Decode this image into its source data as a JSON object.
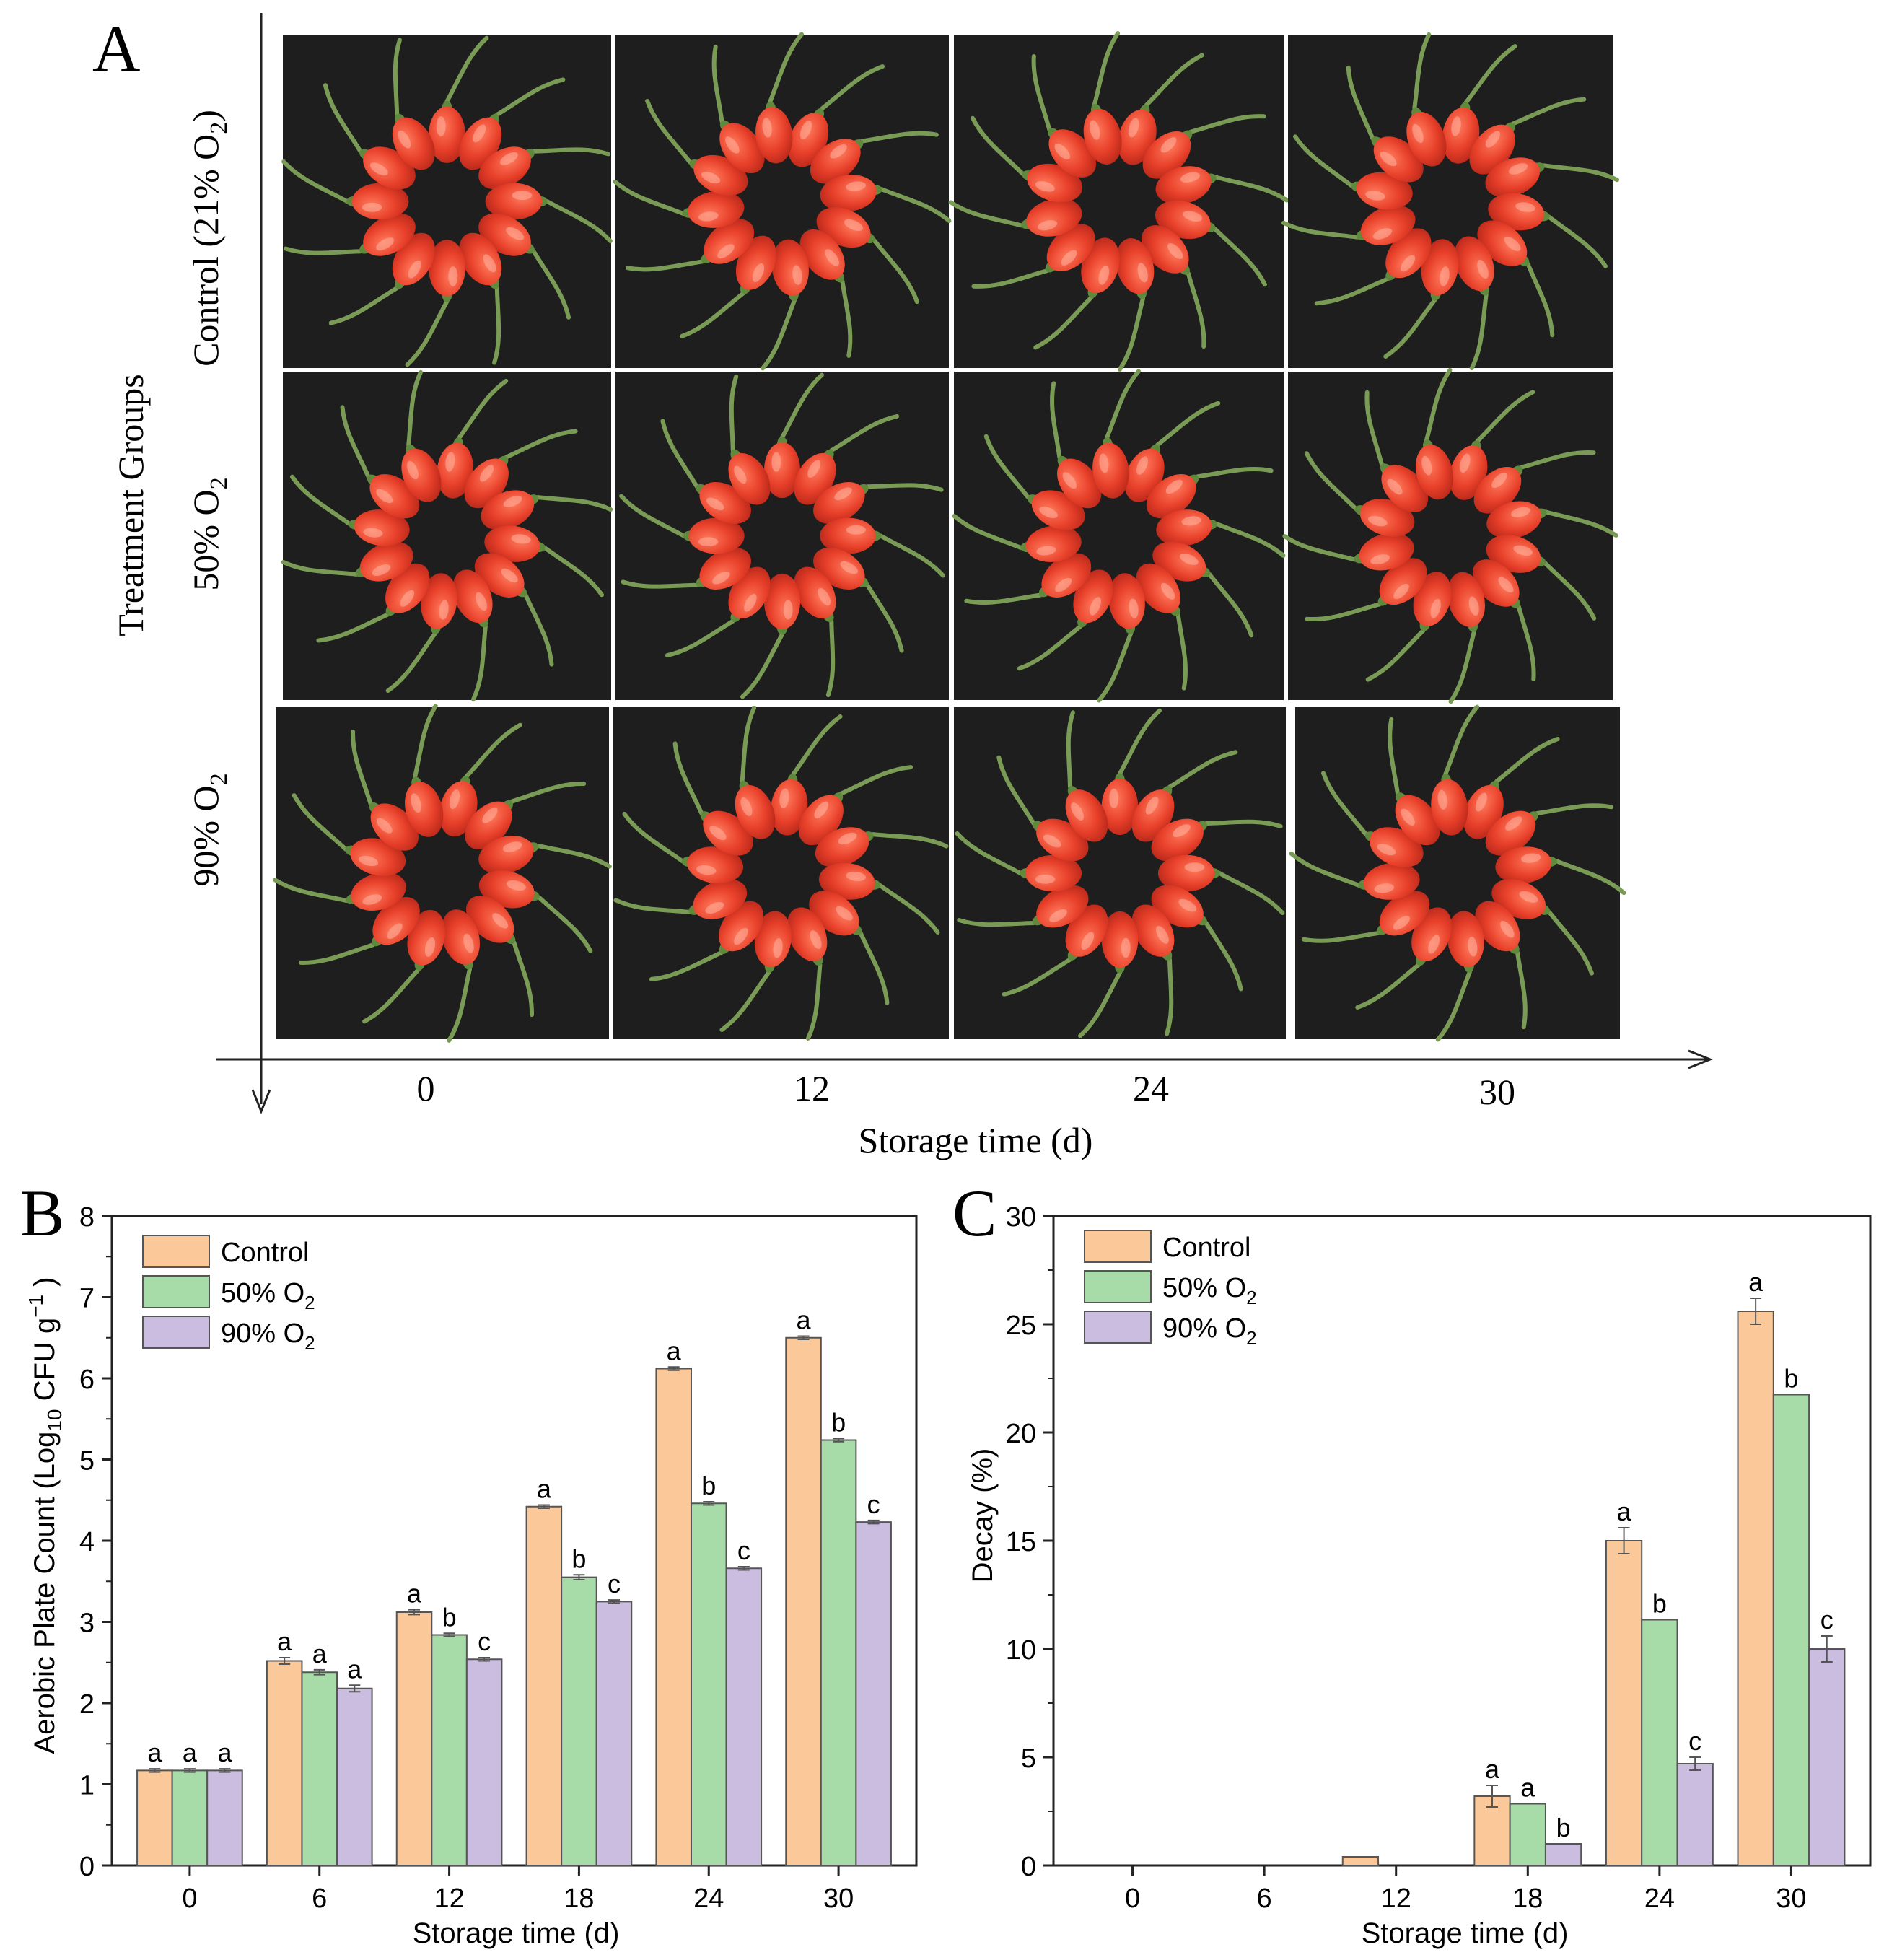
{
  "panel_a": {
    "label": "A",
    "y_axis_title": "Treatment  Groups",
    "x_axis_title": "Storage  time (d)",
    "rows": [
      {
        "label_main": "Control (21% O",
        "label_sub": "2",
        "label_end": ")"
      },
      {
        "label_main": "50% O",
        "label_sub": "2",
        "label_end": ""
      },
      {
        "label_main": "90% O",
        "label_sub": "2",
        "label_end": ""
      }
    ],
    "columns": [
      "0",
      "12",
      "24",
      "30"
    ],
    "photo_description": "goji berries arranged in a ring on black background",
    "berry_count": 12,
    "background_color": "#1e1e1e",
    "berry_color": "#e8402a",
    "stem_color": "#7a9b55"
  },
  "chart_data": [
    {
      "panel": "B",
      "type": "bar",
      "categories": [
        "0",
        "6",
        "12",
        "18",
        "24",
        "30"
      ],
      "series": [
        {
          "name": "Control",
          "color": "#fbc89a",
          "values": [
            1.17,
            2.52,
            3.12,
            4.42,
            6.12,
            6.5
          ],
          "errors": [
            0.02,
            0.04,
            0.03,
            0.02,
            0.02,
            0.02
          ],
          "letters": [
            "a",
            "a",
            "a",
            "a",
            "a",
            "a"
          ]
        },
        {
          "name": "50% O2",
          "color": "#a7dca9",
          "values": [
            1.17,
            2.38,
            2.84,
            3.55,
            4.46,
            5.24
          ],
          "errors": [
            0.02,
            0.03,
            0.02,
            0.03,
            0.02,
            0.02
          ],
          "letters": [
            "a",
            "a",
            "b",
            "b",
            "b",
            "b"
          ]
        },
        {
          "name": "90% O2",
          "color": "#cbbde0",
          "values": [
            1.17,
            2.18,
            2.54,
            3.25,
            3.66,
            4.23
          ],
          "errors": [
            0.02,
            0.04,
            0.02,
            0.02,
            0.02,
            0.02
          ],
          "letters": [
            "a",
            "a",
            "c",
            "c",
            "c",
            "c"
          ]
        }
      ],
      "xlabel": "Storage time (d)",
      "ylabel_main": "Aerobic Plate Count (Log",
      "ylabel_sub": "10",
      "ylabel_mid": " CFU g",
      "ylabel_sup": "−1",
      "ylabel_end": " )",
      "ylim": [
        0,
        8
      ],
      "yticks": [
        "0",
        "1",
        "2",
        "3",
        "4",
        "5",
        "6",
        "7",
        "8"
      ],
      "legend": [
        {
          "main": "Control",
          "sub": ""
        },
        {
          "main": "50% O",
          "sub": "2"
        },
        {
          "main": "90% O",
          "sub": "2"
        }
      ]
    },
    {
      "panel": "C",
      "type": "bar",
      "categories": [
        "0",
        "6",
        "12",
        "18",
        "24",
        "30"
      ],
      "series": [
        {
          "name": "Control",
          "color": "#fbc89a",
          "values": [
            0,
            0,
            0.4,
            3.2,
            15.0,
            25.6
          ],
          "errors": [
            0,
            0,
            0,
            0.5,
            0.6,
            0.6
          ],
          "letters": [
            "",
            "",
            "",
            "a",
            "a",
            "a"
          ]
        },
        {
          "name": "50% O2",
          "color": "#a7dca9",
          "values": [
            0,
            0,
            0,
            2.85,
            11.35,
            21.75
          ],
          "errors": [
            0,
            0,
            0,
            0,
            0,
            0
          ],
          "letters": [
            "",
            "",
            "",
            "a",
            "b",
            "b"
          ]
        },
        {
          "name": "90% O2",
          "color": "#cbbde0",
          "values": [
            0,
            0,
            0,
            1.0,
            4.7,
            10.0
          ],
          "errors": [
            0,
            0,
            0,
            0,
            0.3,
            0.6
          ],
          "letters": [
            "",
            "",
            "",
            "b",
            "c",
            "c"
          ]
        }
      ],
      "xlabel": "Storage time (d)",
      "ylabel": "Decay (%)",
      "ylim": [
        0,
        30
      ],
      "yticks": [
        "0",
        "5",
        "10",
        "15",
        "20",
        "25",
        "30"
      ],
      "legend": [
        {
          "main": "Control",
          "sub": ""
        },
        {
          "main": "50% O",
          "sub": "2"
        },
        {
          "main": "90% O",
          "sub": "2"
        }
      ]
    }
  ]
}
